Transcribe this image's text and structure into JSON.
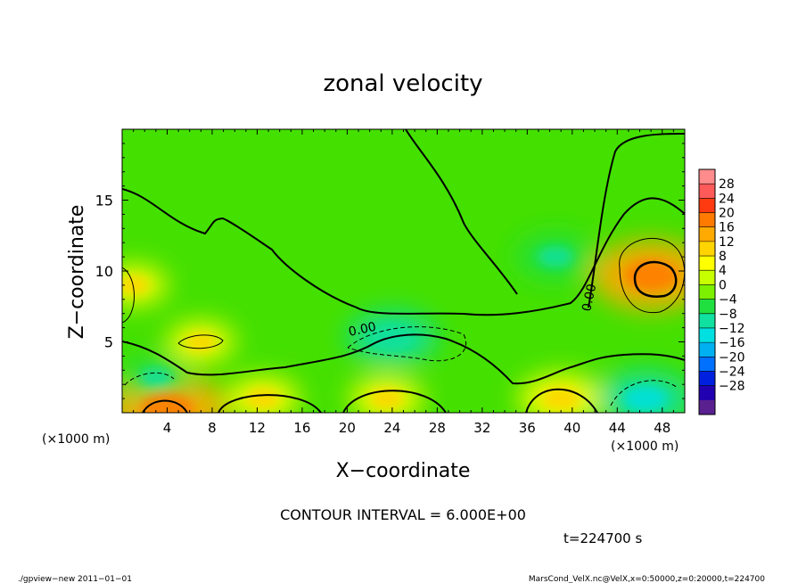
{
  "chart_data": {
    "type": "heatmap",
    "title": "zonal velocity",
    "xlabel": "X−coordinate",
    "ylabel": "Z−coordinate",
    "x_unit": "(×1000 m)",
    "z_unit": "(×1000 m)",
    "xlim": [
      0,
      50
    ],
    "ylim": [
      0,
      20
    ],
    "x_ticks": [
      "4",
      "8",
      "12",
      "16",
      "20",
      "24",
      "28",
      "32",
      "36",
      "40",
      "44",
      "48"
    ],
    "x_tick_values": [
      4,
      8,
      12,
      16,
      20,
      24,
      28,
      32,
      36,
      40,
      44,
      48
    ],
    "y_ticks": [
      "5",
      "10",
      "15"
    ],
    "y_tick_values": [
      5,
      10,
      15
    ],
    "contour_interval_text": "CONTOUR INTERVAL = 6.000E+00",
    "time_text": "t=224700 s",
    "contour_labels": [
      "0.00",
      "0.00"
    ],
    "colorbar": {
      "labels": [
        "28",
        "24",
        "20",
        "16",
        "12",
        "8",
        "4",
        "0",
        "−4",
        "−8",
        "−12",
        "−16",
        "−20",
        "−24",
        "−28"
      ],
      "levels": [
        32,
        28,
        24,
        20,
        16,
        12,
        8,
        4,
        0,
        -4,
        -8,
        -12,
        -16,
        -20,
        -24,
        -28,
        -32
      ],
      "colors": [
        "#ff8c8c",
        "#ff5a5a",
        "#ff3a10",
        "#ff7a00",
        "#ffaa00",
        "#ffd400",
        "#ffff00",
        "#c8ff00",
        "#7cf000",
        "#20e040",
        "#10e0a0",
        "#00e0e0",
        "#00b0f0",
        "#0070ff",
        "#0020e0",
        "#2000b0",
        "#5a2090"
      ]
    },
    "field_features": [
      {
        "x": 4.0,
        "z": 0.3,
        "value": 14,
        "description": "positive cell near bottom"
      },
      {
        "x": 12.5,
        "z": 1.0,
        "value": 6
      },
      {
        "x": 23.5,
        "z": 1.0,
        "value": 6
      },
      {
        "x": 39.0,
        "z": 1.0,
        "value": 8
      },
      {
        "x": 47.0,
        "z": 9.7,
        "value": 14
      },
      {
        "x": 7.0,
        "z": 5.0,
        "value": 5
      },
      {
        "x": 1.0,
        "z": 9.0,
        "value": 5
      },
      {
        "x": 24.0,
        "z": 5.3,
        "value": -9
      },
      {
        "x": 46.5,
        "z": 1.0,
        "value": -10
      },
      {
        "x": 38.5,
        "z": 11.0,
        "value": -7
      },
      {
        "x": 3.0,
        "z": 2.5,
        "value": -6
      }
    ]
  },
  "footer": {
    "left": "./gpview−new   2011−01−01",
    "right": "MarsCond_VelX.nc@VelX,x=0:50000,z=0:20000,t=224700"
  }
}
